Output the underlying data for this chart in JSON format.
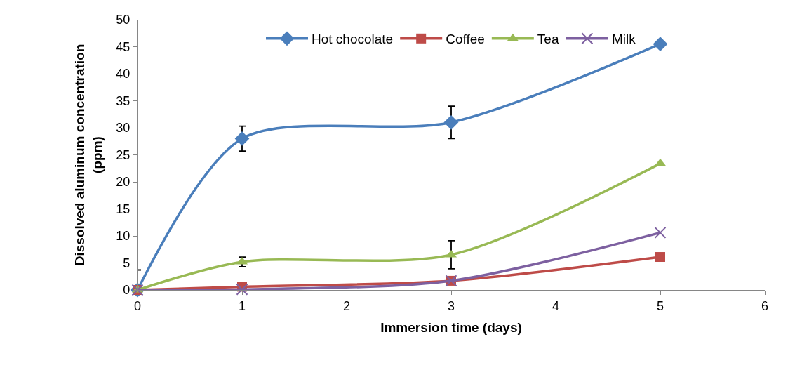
{
  "chart_data": {
    "type": "line",
    "xlabel": "Immersion time (days)",
    "ylabel": "Dissolved aluminum concentration\n(ppm)",
    "x": [
      0,
      1,
      3,
      5
    ],
    "series": [
      {
        "name": "Hot chocolate",
        "color": "#4a7ebb",
        "marker": "diamond",
        "values": [
          0,
          28,
          31,
          45.5
        ],
        "errors": [
          [
            0,
            3.7
          ],
          2.3,
          3,
          null
        ]
      },
      {
        "name": "Coffee",
        "color": "#be4b48",
        "marker": "square",
        "values": [
          0,
          0.6,
          1.7,
          6.1
        ]
      },
      {
        "name": "Tea",
        "color": "#98b954",
        "marker": "triangle",
        "values": [
          0,
          5.2,
          6.5,
          23.4
        ],
        "errors": [
          null,
          0.9,
          2.6,
          null
        ]
      },
      {
        "name": "Milk",
        "color": "#7d60a0",
        "marker": "cross",
        "values": [
          0,
          0.1,
          1.7,
          10.6
        ]
      }
    ],
    "xlim": [
      0,
      6
    ],
    "xticks": [
      0,
      1,
      2,
      3,
      4,
      5,
      6
    ],
    "ylim": [
      0,
      50
    ],
    "yticks": [
      0,
      5,
      10,
      15,
      20,
      25,
      30,
      35,
      40,
      45,
      50
    ],
    "grid": false,
    "legend": "top",
    "line_style": "solid"
  }
}
